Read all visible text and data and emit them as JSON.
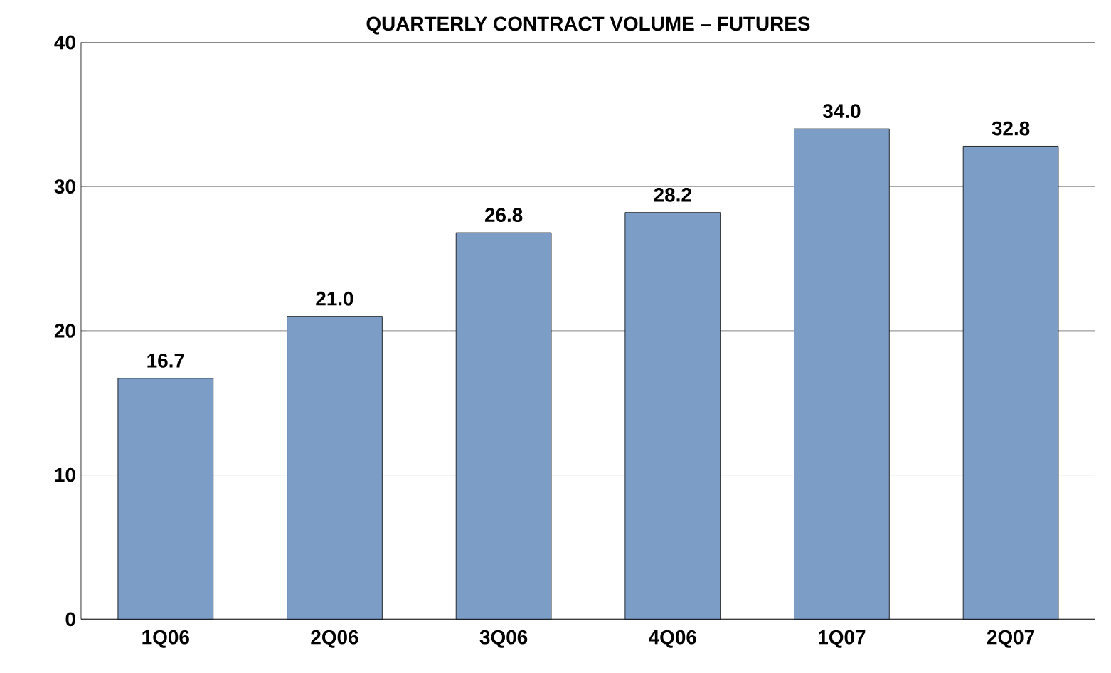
{
  "chart_data": {
    "type": "bar",
    "title": "QUARTERLY CONTRACT VOLUME – FUTURES",
    "categories": [
      "1Q06",
      "2Q06",
      "3Q06",
      "4Q06",
      "1Q07",
      "2Q07"
    ],
    "values": [
      16.7,
      21.0,
      26.8,
      28.2,
      34.0,
      32.8
    ],
    "value_labels": [
      "16.7",
      "21.0",
      "26.8",
      "28.2",
      "34.0",
      "32.8"
    ],
    "color": "#7b9dc6",
    "ylim": [
      0,
      40
    ],
    "yticks": [
      0,
      10,
      20,
      30,
      40
    ],
    "grid": "y"
  }
}
